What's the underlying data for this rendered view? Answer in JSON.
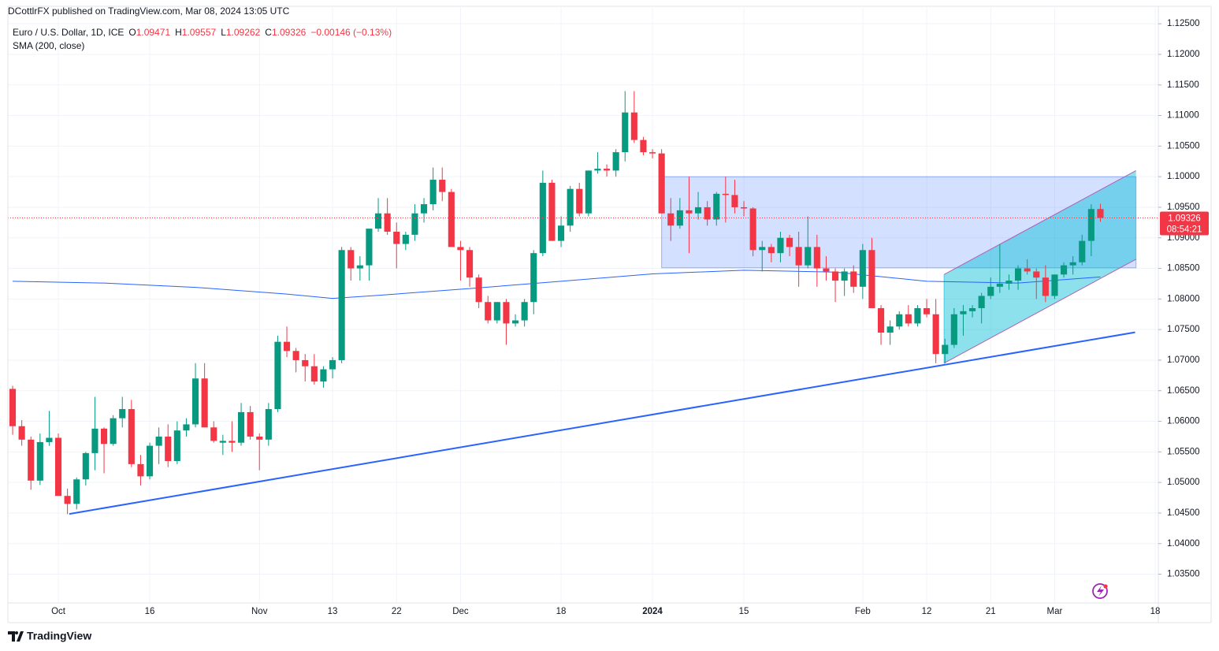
{
  "publisher": "DCottlrFX published on TradingView.com, Mar 08, 2024 13:05 UTC",
  "brand": "TradingView",
  "chart_data": {
    "type": "candlestick",
    "title": "Euro / U.S. Dollar, 1D, ICE",
    "ohlc_labels": [
      "O",
      "H",
      "L",
      "C"
    ],
    "change": "−0.00146 (−0.13%)",
    "countdown": "08:54:21",
    "up_color": "#089981",
    "down_color": "#f23645",
    "open": [
      1.0653,
      1.0592,
      1.057,
      1.0503,
      1.0566,
      1.0573,
      1.0478,
      1.0465,
      1.0505,
      1.0548,
      1.0588,
      1.0563,
      1.0605,
      1.062,
      1.053,
      1.051,
      1.056,
      1.0575,
      1.0535,
      1.0585,
      1.0595,
      1.067,
      1.059,
      1.0565,
      1.0568,
      1.0565,
      1.0615,
      1.0575,
      1.057,
      1.062,
      1.073,
      1.0715,
      1.07,
      1.069,
      1.0665,
      1.0685,
      1.07,
      1.088,
      1.085,
      1.0855,
      1.0915,
      1.094,
      1.091,
      1.089,
      1.0905,
      1.094,
      1.0955,
      1.0995,
      1.0975,
      1.0885,
      1.088,
      1.0835,
      1.0795,
      1.0765,
      1.0795,
      1.076,
      1.0765,
      1.0795,
      1.0875,
      1.099,
      1.0895,
      1.092,
      1.098,
      1.094,
      1.101,
      1.1013,
      1.101,
      1.104,
      1.1105,
      1.106,
      1.104,
      1.1038,
      1.094,
      1.092,
      1.0945,
      1.094,
      1.095,
      1.093,
      1.0972,
      1.097,
      1.095,
      1.0948,
      1.088,
      1.0885,
      1.0875,
      1.09,
      1.0885,
      1.0855,
      1.0885,
      1.085,
      1.0845,
      1.083,
      1.0845,
      1.082,
      1.088,
      1.0785,
      1.0745,
      1.0755,
      1.0775,
      1.076,
      1.0785,
      1.0775,
      1.071,
      1.0725,
      1.0775,
      1.078,
      1.0785,
      1.0805,
      1.082,
      1.0825,
      1.083,
      1.085,
      1.0845,
      1.0835,
      1.0805,
      1.084,
      1.0855,
      1.086,
      1.0895,
      1.09471
    ],
    "high": [
      1.0658,
      1.0602,
      1.0575,
      1.058,
      1.0617,
      1.058,
      1.049,
      1.0508,
      1.055,
      1.064,
      1.059,
      1.061,
      1.064,
      1.0635,
      1.0545,
      1.0565,
      1.059,
      1.0595,
      1.06,
      1.0605,
      1.0695,
      1.0695,
      1.06,
      1.0578,
      1.06,
      1.063,
      1.0625,
      1.058,
      1.063,
      1.074,
      1.0755,
      1.072,
      1.071,
      1.071,
      1.069,
      1.0705,
      1.0885,
      1.0885,
      1.087,
      1.0915,
      1.0965,
      1.0965,
      1.0925,
      1.091,
      1.0955,
      1.0965,
      1.1015,
      1.1015,
      1.098,
      1.0895,
      1.0885,
      1.084,
      1.0805,
      1.0795,
      1.08,
      1.0775,
      1.08,
      1.088,
      1.101,
      1.0995,
      1.0935,
      1.0985,
      1.099,
      1.101,
      1.104,
      1.102,
      1.1045,
      1.114,
      1.114,
      1.1065,
      1.1045,
      1.1045,
      1.0965,
      1.0965,
      1.1,
      1.0975,
      1.096,
      1.0975,
      1.1,
      1.0995,
      1.096,
      1.095,
      1.0895,
      1.089,
      1.091,
      1.0905,
      1.091,
      1.0935,
      1.0905,
      1.087,
      1.085,
      1.085,
      1.0855,
      1.089,
      1.09,
      1.079,
      1.0765,
      1.078,
      1.079,
      1.079,
      1.08,
      1.08,
      1.0735,
      1.0785,
      1.079,
      1.079,
      1.081,
      1.0835,
      1.089,
      1.084,
      1.0855,
      1.0865,
      1.085,
      1.0855,
      1.084,
      1.086,
      1.087,
      1.0905,
      1.0955,
      1.09557
    ],
    "low": [
      1.0578,
      1.056,
      1.0488,
      1.0496,
      1.056,
      1.0478,
      1.0448,
      1.0456,
      1.0495,
      1.052,
      1.0515,
      1.056,
      1.059,
      1.0525,
      1.0495,
      1.0505,
      1.053,
      1.0525,
      1.053,
      1.0575,
      1.059,
      1.059,
      1.0565,
      1.0545,
      1.055,
      1.056,
      1.057,
      1.052,
      1.056,
      1.0615,
      1.0705,
      1.068,
      1.0665,
      1.066,
      1.0655,
      1.067,
      1.0695,
      1.083,
      1.083,
      1.083,
      1.091,
      1.0905,
      1.085,
      1.088,
      1.0895,
      1.0925,
      1.0945,
      1.096,
      1.0885,
      1.083,
      1.082,
      1.0785,
      1.076,
      1.076,
      1.0725,
      1.0755,
      1.0755,
      1.0775,
      1.087,
      1.0895,
      1.0885,
      1.091,
      1.0935,
      1.0935,
      1.1005,
      1.1,
      1.1,
      1.1025,
      1.1055,
      1.1035,
      1.103,
      1.094,
      1.0895,
      1.0915,
      1.0875,
      1.093,
      1.092,
      1.092,
      1.0925,
      1.094,
      1.0935,
      1.087,
      1.0845,
      1.086,
      1.086,
      1.087,
      1.082,
      1.085,
      1.082,
      1.083,
      1.0795,
      1.0805,
      1.081,
      1.08,
      1.0785,
      1.0725,
      1.0725,
      1.075,
      1.0755,
      1.0755,
      1.077,
      1.0695,
      1.0695,
      1.072,
      1.074,
      1.077,
      1.076,
      1.08,
      1.081,
      1.0815,
      1.0815,
      1.084,
      1.08,
      1.0795,
      1.08,
      1.0835,
      1.084,
      1.0855,
      1.087,
      1.09262
    ],
    "close": [
      1.0592,
      1.057,
      1.0503,
      1.0566,
      1.0573,
      1.0478,
      1.0465,
      1.0505,
      1.0548,
      1.0588,
      1.0563,
      1.0605,
      1.062,
      1.053,
      1.051,
      1.056,
      1.0575,
      1.0535,
      1.0585,
      1.0595,
      1.067,
      1.059,
      1.0568,
      1.0568,
      1.0565,
      1.0615,
      1.0575,
      1.057,
      1.062,
      1.073,
      1.0715,
      1.07,
      1.069,
      1.0665,
      1.0685,
      1.07,
      1.088,
      1.085,
      1.0855,
      1.0915,
      1.094,
      1.091,
      1.089,
      1.0905,
      1.094,
      1.0955,
      1.0995,
      1.0975,
      1.0885,
      1.088,
      1.0835,
      1.0795,
      1.0765,
      1.0795,
      1.076,
      1.0765,
      1.0795,
      1.0875,
      1.099,
      1.0895,
      1.092,
      1.098,
      1.094,
      1.101,
      1.1013,
      1.101,
      1.104,
      1.1105,
      1.106,
      1.104,
      1.1038,
      1.094,
      1.092,
      1.0945,
      1.094,
      1.095,
      1.093,
      1.0972,
      1.097,
      1.095,
      1.0948,
      1.088,
      1.0885,
      1.0875,
      1.09,
      1.0885,
      1.0855,
      1.0885,
      1.085,
      1.0845,
      1.083,
      1.0845,
      1.082,
      1.088,
      1.0785,
      1.0745,
      1.0755,
      1.0775,
      1.076,
      1.0785,
      1.0775,
      1.071,
      1.0725,
      1.0775,
      1.078,
      1.0785,
      1.0805,
      1.082,
      1.0825,
      1.083,
      1.085,
      1.0845,
      1.0835,
      1.0805,
      1.084,
      1.0855,
      1.086,
      1.0895,
      1.09471,
      1.09326
    ],
    "sma": {
      "name": "SMA (200, close)",
      "color": "#2962ff",
      "x": [
        0,
        10,
        20,
        30,
        35,
        40,
        50,
        60,
        70,
        80,
        90,
        100,
        110,
        119
      ],
      "values": [
        1.0829,
        1.0826,
        1.0819,
        1.0808,
        1.0801,
        1.0806,
        1.0817,
        1.0829,
        1.0841,
        1.0847,
        1.0844,
        1.0829,
        1.0826,
        1.0836
      ]
    },
    "rectangle": {
      "x": [
        71,
        122.9
      ],
      "y": [
        1.1,
        1.0851
      ],
      "color": "#2962ff"
    },
    "channel": {
      "x": [
        101.9,
        122.9
      ],
      "lower": [
        1.0695,
        1.0865
      ],
      "upper": [
        1.084,
        1.101
      ],
      "color": "#00bcd4",
      "line_color": "#b05fb5"
    },
    "trendline": {
      "x": [
        6.2,
        122.8
      ],
      "values": [
        1.04485,
        1.07455
      ],
      "color": "#2962ff"
    },
    "xlim": [
      -0.52,
      125.34
    ],
    "ylim": [
      1.0303,
      1.1276
    ],
    "grid": true,
    "xticks": [
      {
        "value": 5,
        "label": "Oct"
      },
      {
        "value": 15,
        "label": "16"
      },
      {
        "value": 27,
        "label": "Nov"
      },
      {
        "value": 35,
        "label": "13"
      },
      {
        "value": 42,
        "label": "22"
      },
      {
        "value": 49,
        "label": "Dec"
      },
      {
        "value": 60,
        "label": "18"
      },
      {
        "value": 70,
        "label": "2024"
      },
      {
        "value": 80,
        "label": "15"
      },
      {
        "value": 93,
        "label": "Feb"
      },
      {
        "value": 100,
        "label": "12"
      },
      {
        "value": 107,
        "label": "21"
      },
      {
        "value": 114,
        "label": "Mar"
      },
      {
        "value": 125,
        "label": "18"
      }
    ],
    "yticks": [
      {
        "value": 1.035,
        "label": "1.03500"
      },
      {
        "value": 1.04,
        "label": "1.04000"
      },
      {
        "value": 1.045,
        "label": "1.04500"
      },
      {
        "value": 1.05,
        "label": "1.05000"
      },
      {
        "value": 1.055,
        "label": "1.05500"
      },
      {
        "value": 1.06,
        "label": "1.06000"
      },
      {
        "value": 1.065,
        "label": "1.06500"
      },
      {
        "value": 1.07,
        "label": "1.07000"
      },
      {
        "value": 1.075,
        "label": "1.07500"
      },
      {
        "value": 1.08,
        "label": "1.08000"
      },
      {
        "value": 1.085,
        "label": "1.08500"
      },
      {
        "value": 1.09,
        "label": "1.09000"
      },
      {
        "value": 1.095,
        "label": "1.09500"
      },
      {
        "value": 1.1,
        "label": "1.10000"
      },
      {
        "value": 1.105,
        "label": "1.10500"
      },
      {
        "value": 1.11,
        "label": "1.11000"
      },
      {
        "value": 1.115,
        "label": "1.11500"
      },
      {
        "value": 1.12,
        "label": "1.12000"
      },
      {
        "value": 1.125,
        "label": "1.12500"
      }
    ]
  }
}
